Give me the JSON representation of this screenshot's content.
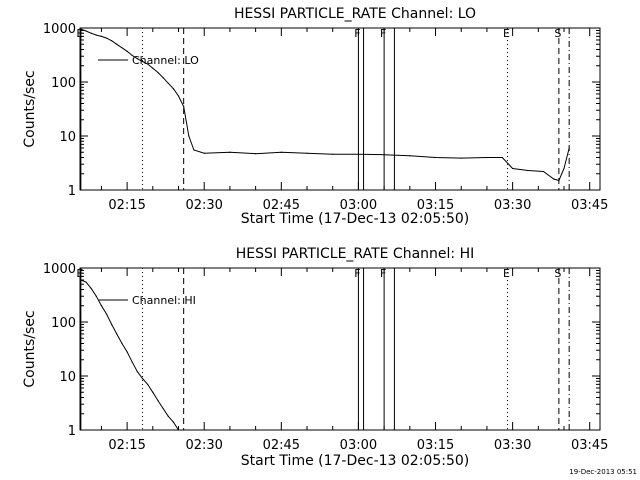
{
  "footer": {
    "timestamp": "19-Dec-2013 05:51"
  },
  "chart_data": [
    {
      "type": "line",
      "title": "HESSI PARTICLE_RATE Channel: LO",
      "xlabel": "Start Time (17-Dec-13 02:05:50)",
      "ylabel": "Counts/sec",
      "yscale": "log",
      "ylim": [
        1,
        1000
      ],
      "xlim_minutes": [
        5.833,
        107.0
      ],
      "x_ticks": [
        "02:15",
        "02:30",
        "02:45",
        "03:00",
        "03:15",
        "03:30",
        "03:45"
      ],
      "y_ticks": [
        "1",
        "10",
        "100",
        "1000"
      ],
      "legend": {
        "label": "Channel: LO",
        "position": "upper-left"
      },
      "markers": [
        {
          "label": "E",
          "time": "02:06",
          "style": "solid"
        },
        {
          "label": "",
          "time": "02:18",
          "style": "dotted"
        },
        {
          "label": "",
          "time": "02:26",
          "style": "dashed"
        },
        {
          "label": "F",
          "time": "03:00",
          "style": "solid"
        },
        {
          "label": "",
          "time": "03:01",
          "style": "solid"
        },
        {
          "label": "F",
          "time": "03:05",
          "style": "solid"
        },
        {
          "label": "",
          "time": "03:07",
          "style": "solid"
        },
        {
          "label": "E",
          "time": "03:29",
          "style": "dotted"
        },
        {
          "label": "S",
          "time": "03:39",
          "style": "dashed"
        },
        {
          "label": "",
          "time": "03:41",
          "style": "dashdot"
        }
      ],
      "series": [
        {
          "name": "Channel: LO",
          "x": [
            "02:06",
            "02:07",
            "02:08",
            "02:09",
            "02:10",
            "02:11",
            "02:12",
            "02:13",
            "02:14",
            "02:15",
            "02:16",
            "02:17",
            "02:18",
            "02:19",
            "02:20",
            "02:21",
            "02:22",
            "02:23",
            "02:24",
            "02:25",
            "02:26",
            "02:27",
            "02:28",
            "02:30",
            "02:35",
            "02:40",
            "02:45",
            "02:50",
            "02:55",
            "03:00",
            "03:05",
            "03:10",
            "03:15",
            "03:20",
            "03:25",
            "03:28",
            "03:30",
            "03:33",
            "03:36",
            "03:38",
            "03:39",
            "03:40",
            "03:41"
          ],
          "y": [
            950,
            880,
            800,
            740,
            700,
            650,
            580,
            500,
            430,
            370,
            310,
            270,
            240,
            215,
            180,
            150,
            120,
            95,
            75,
            55,
            35,
            10,
            5.5,
            4.8,
            5,
            4.7,
            5,
            4.8,
            4.6,
            4.6,
            4.5,
            4.3,
            4,
            3.9,
            4,
            4,
            2.5,
            2.3,
            2.2,
            1.6,
            1.5,
            2.5,
            6
          ]
        }
      ]
    },
    {
      "type": "line",
      "title": "HESSI PARTICLE_RATE Channel: HI",
      "xlabel": "Start Time (17-Dec-13 02:05:50)",
      "ylabel": "Counts/sec",
      "yscale": "log",
      "ylim": [
        1,
        1000
      ],
      "xlim_minutes": [
        5.833,
        107.0
      ],
      "x_ticks": [
        "02:15",
        "02:30",
        "02:45",
        "03:00",
        "03:15",
        "03:30",
        "03:45"
      ],
      "y_ticks": [
        "1",
        "10",
        "100",
        "1000"
      ],
      "legend": {
        "label": "Channel: HI",
        "position": "upper-left"
      },
      "markers": [
        {
          "label": "E",
          "time": "02:06",
          "style": "solid"
        },
        {
          "label": "",
          "time": "02:18",
          "style": "dotted"
        },
        {
          "label": "",
          "time": "02:26",
          "style": "dashed"
        },
        {
          "label": "F",
          "time": "03:00",
          "style": "solid"
        },
        {
          "label": "",
          "time": "03:01",
          "style": "solid"
        },
        {
          "label": "F",
          "time": "03:05",
          "style": "solid"
        },
        {
          "label": "",
          "time": "03:07",
          "style": "solid"
        },
        {
          "label": "E",
          "time": "03:29",
          "style": "dotted"
        },
        {
          "label": "S",
          "time": "03:39",
          "style": "dashed"
        },
        {
          "label": "",
          "time": "03:41",
          "style": "dashdot"
        }
      ],
      "series": [
        {
          "name": "Channel: HI",
          "x": [
            "02:06",
            "02:07",
            "02:08",
            "02:09",
            "02:10",
            "02:11",
            "02:12",
            "02:13",
            "02:14",
            "02:15",
            "02:16",
            "02:17",
            "02:18",
            "02:19",
            "02:20",
            "02:21",
            "02:22",
            "02:23",
            "02:24",
            "02:25"
          ],
          "y": [
            600,
            550,
            420,
            300,
            200,
            140,
            90,
            60,
            40,
            28,
            18,
            12,
            9,
            7,
            5,
            3.5,
            2.5,
            1.8,
            1.4,
            1
          ]
        }
      ]
    }
  ]
}
